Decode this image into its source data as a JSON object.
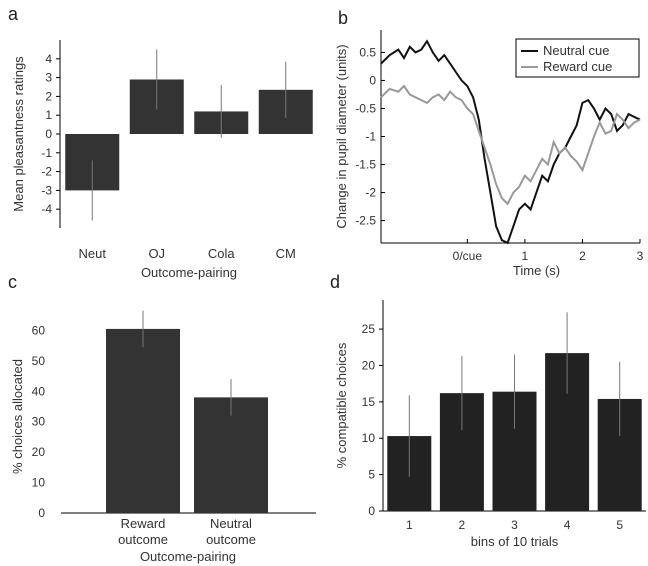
{
  "colors": {
    "bar": "#333333",
    "bar_dark": "#222222",
    "err": "#777777",
    "neutral_line": "#111111",
    "reward_line": "#999999"
  },
  "panels": {
    "a": "a",
    "b": "b",
    "c": "c",
    "d": "d"
  },
  "chart_data": [
    {
      "panel": "a",
      "type": "bar",
      "categories": [
        "Neut",
        "OJ",
        "Cola",
        "CM"
      ],
      "values": [
        -3.0,
        2.9,
        1.2,
        2.35
      ],
      "errors": [
        1.6,
        1.6,
        1.4,
        1.5
      ],
      "xlabel": "Outcome-pairing",
      "ylabel": "Mean pleasantness ratings",
      "ylim": [
        -5,
        5
      ],
      "yticks": [
        -4,
        -3,
        -2,
        -1,
        0,
        1,
        2,
        3,
        4
      ]
    },
    {
      "panel": "b",
      "type": "line",
      "xlabel": "Time (s)",
      "ylabel": "Change in pupil diameter (units)",
      "xlim": [
        -1.5,
        3
      ],
      "ylim": [
        -2.9,
        0.9
      ],
      "xtick_labels": [
        "0/cue",
        "1",
        "2",
        "3"
      ],
      "xticks": [
        0,
        1,
        2,
        3
      ],
      "yticks": [
        -2.5,
        -2,
        -1.5,
        -1,
        -0.5,
        0,
        0.5
      ],
      "ytick_labels": [
        "-2.5",
        "-2",
        "-1.5",
        "-1",
        "-0.5",
        "0",
        "0.5"
      ],
      "legend": "top-right",
      "series": [
        {
          "name": "Neutral cue",
          "x": [
            -1.5,
            -1.35,
            -1.2,
            -1.1,
            -1.0,
            -0.9,
            -0.8,
            -0.7,
            -0.6,
            -0.5,
            -0.4,
            -0.3,
            -0.2,
            -0.1,
            0.0,
            0.1,
            0.2,
            0.3,
            0.4,
            0.5,
            0.6,
            0.7,
            0.8,
            0.9,
            1.0,
            1.1,
            1.2,
            1.3,
            1.4,
            1.5,
            1.6,
            1.7,
            1.8,
            1.9,
            2.0,
            2.1,
            2.2,
            2.3,
            2.4,
            2.5,
            2.6,
            2.7,
            2.8,
            2.9,
            3.0
          ],
          "y": [
            0.3,
            0.45,
            0.55,
            0.4,
            0.6,
            0.5,
            0.55,
            0.7,
            0.5,
            0.35,
            0.45,
            0.3,
            0.15,
            0.0,
            -0.1,
            -0.3,
            -0.7,
            -1.4,
            -2.0,
            -2.6,
            -2.85,
            -2.9,
            -2.6,
            -2.3,
            -2.2,
            -2.3,
            -2.0,
            -1.7,
            -1.8,
            -1.5,
            -1.3,
            -1.2,
            -1.0,
            -0.8,
            -0.4,
            -0.35,
            -0.5,
            -0.7,
            -0.5,
            -0.6,
            -0.9,
            -0.8,
            -0.6,
            -0.65,
            -0.7
          ]
        },
        {
          "name": "Reward cue",
          "x": [
            -1.5,
            -1.35,
            -1.2,
            -1.1,
            -1.0,
            -0.9,
            -0.8,
            -0.7,
            -0.6,
            -0.5,
            -0.4,
            -0.3,
            -0.2,
            -0.1,
            0.0,
            0.1,
            0.2,
            0.3,
            0.4,
            0.5,
            0.6,
            0.7,
            0.8,
            0.9,
            1.0,
            1.1,
            1.2,
            1.3,
            1.4,
            1.5,
            1.6,
            1.7,
            1.8,
            1.9,
            2.0,
            2.1,
            2.2,
            2.3,
            2.4,
            2.5,
            2.6,
            2.7,
            2.8,
            2.9,
            3.0
          ],
          "y": [
            -0.3,
            -0.15,
            -0.2,
            -0.1,
            -0.25,
            -0.3,
            -0.35,
            -0.4,
            -0.3,
            -0.25,
            -0.35,
            -0.2,
            -0.3,
            -0.35,
            -0.5,
            -0.6,
            -0.9,
            -1.2,
            -1.5,
            -1.85,
            -2.1,
            -2.2,
            -2.0,
            -1.9,
            -1.7,
            -1.8,
            -1.6,
            -1.4,
            -1.5,
            -1.1,
            -1.3,
            -1.2,
            -1.35,
            -1.45,
            -1.6,
            -1.3,
            -1.0,
            -0.75,
            -0.95,
            -0.9,
            -0.6,
            -0.7,
            -0.85,
            -0.75,
            -0.7
          ]
        }
      ]
    },
    {
      "panel": "c",
      "type": "bar",
      "categories": [
        [
          "Reward",
          "outcome"
        ],
        [
          "Neutral",
          "outcome"
        ]
      ],
      "values": [
        60.5,
        38.0
      ],
      "errors": [
        6.0,
        6.0
      ],
      "xlabel": "Outcome-pairing",
      "ylabel": "% choices allocated",
      "ylim": [
        0,
        70
      ],
      "yticks": [
        0,
        10,
        20,
        30,
        40,
        50,
        60
      ]
    },
    {
      "panel": "d",
      "type": "bar",
      "categories": [
        "1",
        "2",
        "3",
        "4",
        "5"
      ],
      "values": [
        10.3,
        16.2,
        16.4,
        21.7,
        15.4
      ],
      "errors": [
        5.6,
        5.1,
        5.1,
        5.6,
        5.1
      ],
      "xlabel": "bins of 10 trials",
      "ylabel": "% compatible choices",
      "ylim": [
        0,
        29
      ],
      "yticks": [
        0,
        5,
        10,
        15,
        20,
        25
      ]
    }
  ]
}
